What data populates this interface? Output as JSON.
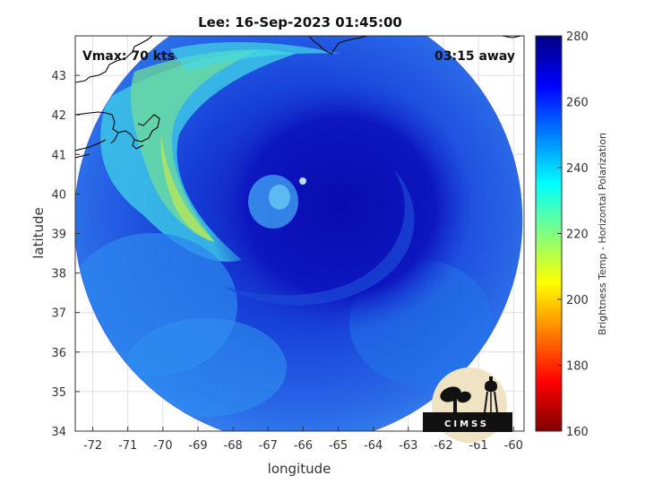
{
  "map": {
    "title": "Lee: 16-Sep-2023 01:45:00",
    "vmax_label": "Vmax: 70 kts",
    "time_away_label": "03:15 away",
    "xlabel": "longitude",
    "ylabel": "latitude",
    "x_ticks": [
      "-72",
      "-71",
      "-70",
      "-69",
      "-68",
      "-67",
      "-66",
      "-65",
      "-64",
      "-63",
      "-62",
      "-61",
      "-60"
    ],
    "y_ticks": [
      "43",
      "42",
      "41",
      "40",
      "39",
      "38",
      "37",
      "36",
      "35",
      "34"
    ],
    "xlim": [
      -72.5,
      -59.7
    ],
    "ylim": [
      34,
      44
    ]
  },
  "colorbar": {
    "label": "Brightness Temp - Horizontal Polarization",
    "ticks": [
      "280",
      "260",
      "240",
      "220",
      "200",
      "180",
      "160"
    ],
    "range": [
      160,
      280
    ],
    "colormap": "jet"
  },
  "logo": {
    "text": "CIMSS"
  },
  "colors": {
    "storm_core": "#0a10b8",
    "swath_outer": "#2a7cf0",
    "rainband": "#8ee07a",
    "background": "#ffffff"
  }
}
